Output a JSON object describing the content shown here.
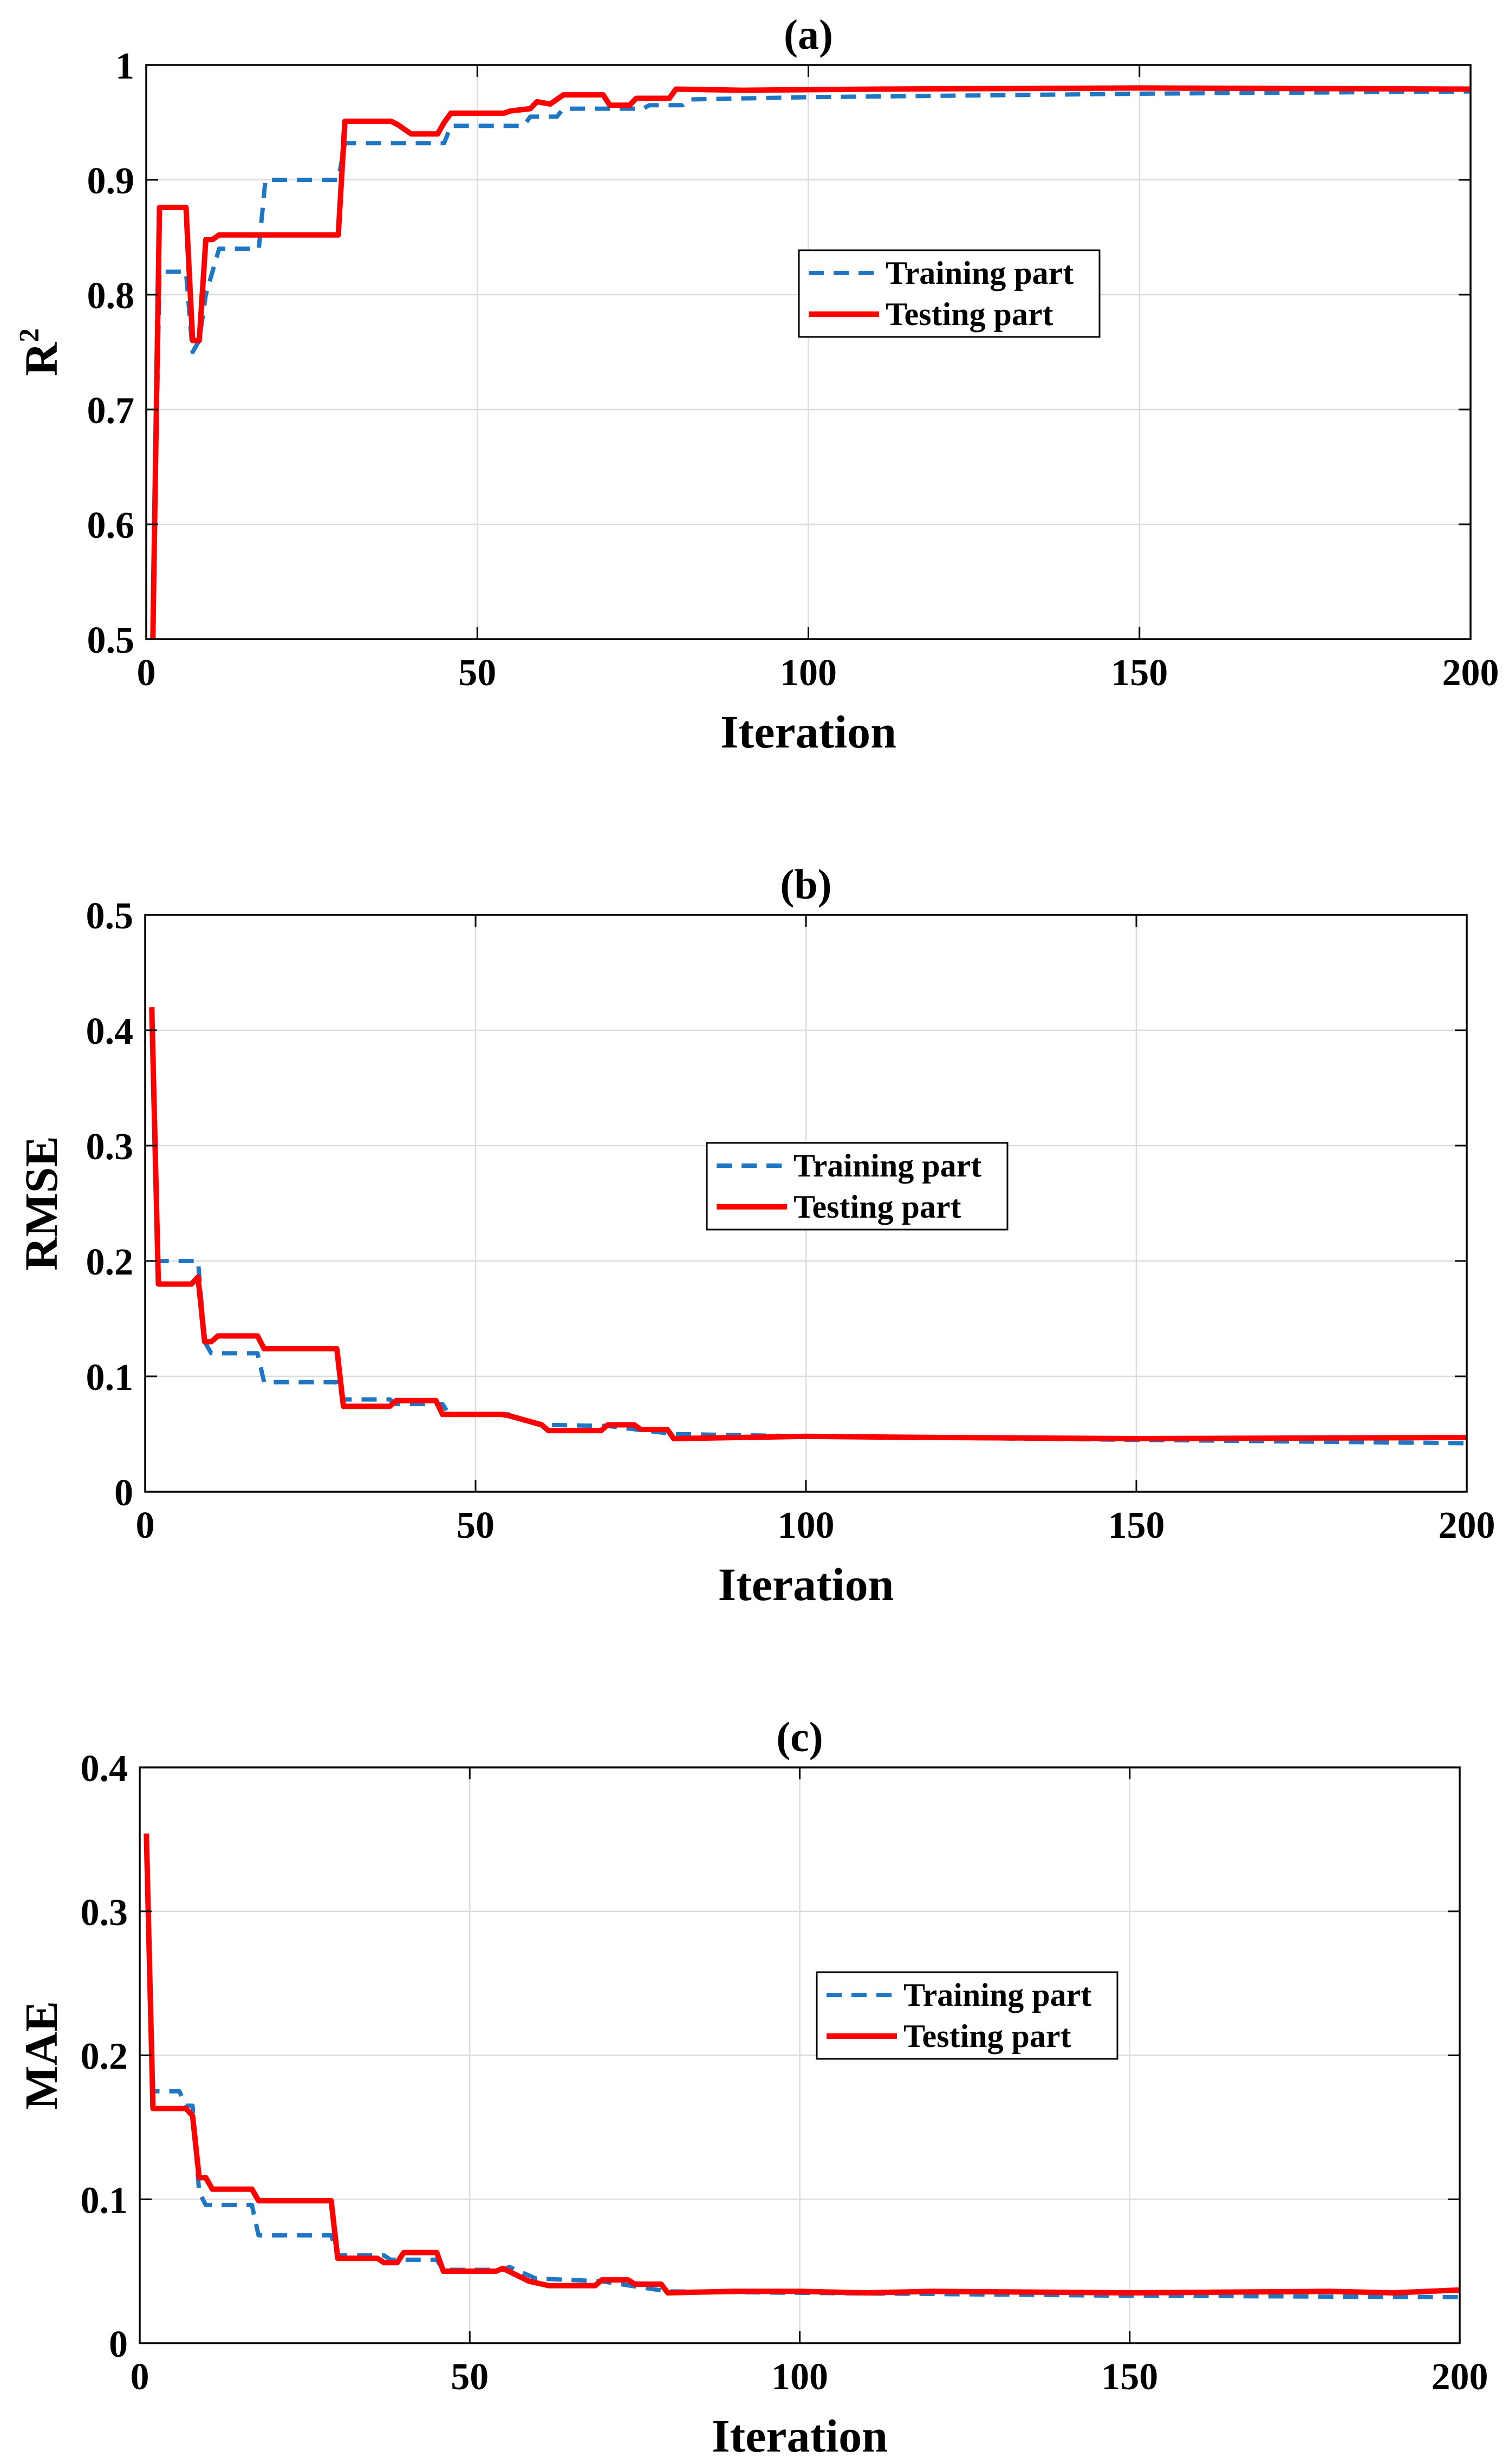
{
  "chart_data": [
    {
      "panel": "a",
      "type": "line",
      "title": "(a)",
      "xlabel": "Iteration",
      "ylabel": "R",
      "ylabel_sup": "2",
      "xlim": [
        0,
        200
      ],
      "ylim": [
        0.5,
        1
      ],
      "xticks": [
        0,
        50,
        100,
        150,
        200
      ],
      "xtick_labels": [
        "0",
        "50",
        "100",
        "150",
        "200"
      ],
      "yticks": [
        0.5,
        0.6,
        0.7,
        0.8,
        0.9,
        1
      ],
      "ytick_labels": [
        "0.5",
        "0.6",
        "0.7",
        "0.8",
        "0.9",
        "1"
      ],
      "grid": true,
      "legend_position": "center-right",
      "series": [
        {
          "name": "Training part",
          "color": "#1f77c4",
          "style": "dashed",
          "points": [
            [
              1,
              0.5
            ],
            [
              2,
              0.82
            ],
            [
              6,
              0.82
            ],
            [
              7,
              0.75
            ],
            [
              8,
              0.76
            ],
            [
              9,
              0.8
            ],
            [
              11,
              0.84
            ],
            [
              17,
              0.84
            ],
            [
              18,
              0.9
            ],
            [
              29,
              0.9
            ],
            [
              30,
              0.932
            ],
            [
              45,
              0.932
            ],
            [
              46,
              0.947
            ],
            [
              57,
              0.947
            ],
            [
              58,
              0.955
            ],
            [
              62,
              0.955
            ],
            [
              63,
              0.962
            ],
            [
              75,
              0.962
            ],
            [
              76,
              0.965
            ],
            [
              81,
              0.965
            ],
            [
              82,
              0.97
            ],
            [
              100,
              0.972
            ],
            [
              150,
              0.975
            ],
            [
              200,
              0.977
            ]
          ]
        },
        {
          "name": "Testing part",
          "color": "#ff0000",
          "style": "solid",
          "points": [
            [
              1,
              0.5
            ],
            [
              2,
              0.876
            ],
            [
              6,
              0.876
            ],
            [
              7,
              0.76
            ],
            [
              8,
              0.76
            ],
            [
              9,
              0.848
            ],
            [
              10,
              0.848
            ],
            [
              11,
              0.852
            ],
            [
              29,
              0.852
            ],
            [
              30,
              0.951
            ],
            [
              37,
              0.951
            ],
            [
              38,
              0.948
            ],
            [
              40,
              0.94
            ],
            [
              44,
              0.94
            ],
            [
              45,
              0.95
            ],
            [
              46,
              0.958
            ],
            [
              54,
              0.958
            ],
            [
              55,
              0.96
            ],
            [
              58,
              0.962
            ],
            [
              59,
              0.968
            ],
            [
              61,
              0.966
            ],
            [
              62,
              0.97
            ],
            [
              63,
              0.974
            ],
            [
              69,
              0.974
            ],
            [
              70,
              0.965
            ],
            [
              73,
              0.965
            ],
            [
              74,
              0.971
            ],
            [
              79,
              0.971
            ],
            [
              80,
              0.979
            ],
            [
              90,
              0.978
            ],
            [
              110,
              0.979
            ],
            [
              150,
              0.98
            ],
            [
              200,
              0.979
            ]
          ]
        }
      ]
    },
    {
      "panel": "b",
      "type": "line",
      "title": "(b)",
      "xlabel": "Iteration",
      "ylabel": "RMSE",
      "ylabel_sup": "",
      "xlim": [
        0,
        200
      ],
      "ylim": [
        0,
        0.5
      ],
      "xticks": [
        0,
        50,
        100,
        150,
        200
      ],
      "xtick_labels": [
        "0",
        "50",
        "100",
        "150",
        "200"
      ],
      "yticks": [
        0,
        0.1,
        0.2,
        0.3,
        0.4,
        0.5
      ],
      "ytick_labels": [
        "0",
        "0.1",
        "0.2",
        "0.3",
        "0.4",
        "0.5"
      ],
      "grid": true,
      "legend_position": "center",
      "series": [
        {
          "name": "Training part",
          "color": "#1f77c4",
          "style": "dashed",
          "points": [
            [
              1,
              0.42
            ],
            [
              2,
              0.2
            ],
            [
              8,
              0.2
            ],
            [
              9,
              0.13
            ],
            [
              10,
              0.12
            ],
            [
              17,
              0.12
            ],
            [
              18,
              0.095
            ],
            [
              29,
              0.095
            ],
            [
              30,
              0.08
            ],
            [
              37,
              0.08
            ],
            [
              38,
              0.076
            ],
            [
              45,
              0.076
            ],
            [
              46,
              0.067
            ],
            [
              55,
              0.067
            ],
            [
              56,
              0.064
            ],
            [
              60,
              0.058
            ],
            [
              70,
              0.057
            ],
            [
              80,
              0.05
            ],
            [
              90,
              0.049
            ],
            [
              100,
              0.048
            ],
            [
              150,
              0.045
            ],
            [
              200,
              0.042
            ]
          ]
        },
        {
          "name": "Testing part",
          "color": "#ff0000",
          "style": "solid",
          "points": [
            [
              1,
              0.42
            ],
            [
              2,
              0.18
            ],
            [
              7,
              0.18
            ],
            [
              8,
              0.186
            ],
            [
              9,
              0.13
            ],
            [
              10,
              0.13
            ],
            [
              11,
              0.135
            ],
            [
              17,
              0.135
            ],
            [
              18,
              0.124
            ],
            [
              29,
              0.124
            ],
            [
              30,
              0.074
            ],
            [
              37,
              0.074
            ],
            [
              38,
              0.079
            ],
            [
              44,
              0.079
            ],
            [
              45,
              0.067
            ],
            [
              54,
              0.067
            ],
            [
              55,
              0.066
            ],
            [
              60,
              0.058
            ],
            [
              61,
              0.053
            ],
            [
              69,
              0.053
            ],
            [
              70,
              0.058
            ],
            [
              74,
              0.058
            ],
            [
              75,
              0.054
            ],
            [
              79,
              0.054
            ],
            [
              80,
              0.046
            ],
            [
              90,
              0.047
            ],
            [
              100,
              0.048
            ],
            [
              120,
              0.047
            ],
            [
              150,
              0.046
            ],
            [
              200,
              0.047
            ]
          ]
        }
      ]
    },
    {
      "panel": "c",
      "type": "line",
      "title": "(c)",
      "xlabel": "Iteration",
      "ylabel": "MAE",
      "ylabel_sup": "",
      "xlim": [
        0,
        200
      ],
      "ylim": [
        0,
        0.4
      ],
      "xticks": [
        0,
        50,
        100,
        150,
        200
      ],
      "xtick_labels": [
        "0",
        "50",
        "100",
        "150",
        "200"
      ],
      "yticks": [
        0,
        0.1,
        0.2,
        0.3,
        0.4
      ],
      "ytick_labels": [
        "0",
        "0.1",
        "0.2",
        "0.3",
        "0.4"
      ],
      "grid": true,
      "legend_position": "center-right",
      "series": [
        {
          "name": "Training part",
          "color": "#1f77c4",
          "style": "dashed",
          "points": [
            [
              1,
              0.354
            ],
            [
              2,
              0.175
            ],
            [
              6,
              0.175
            ],
            [
              7,
              0.165
            ],
            [
              8,
              0.165
            ],
            [
              9,
              0.105
            ],
            [
              10,
              0.096
            ],
            [
              17,
              0.096
            ],
            [
              18,
              0.075
            ],
            [
              29,
              0.075
            ],
            [
              30,
              0.061
            ],
            [
              37,
              0.061
            ],
            [
              38,
              0.058
            ],
            [
              45,
              0.058
            ],
            [
              46,
              0.051
            ],
            [
              55,
              0.051
            ],
            [
              56,
              0.053
            ],
            [
              60,
              0.045
            ],
            [
              70,
              0.043
            ],
            [
              80,
              0.036
            ],
            [
              100,
              0.035
            ],
            [
              150,
              0.033
            ],
            [
              200,
              0.032
            ]
          ]
        },
        {
          "name": "Testing part",
          "color": "#ff0000",
          "style": "solid",
          "points": [
            [
              1,
              0.354
            ],
            [
              2,
              0.163
            ],
            [
              7,
              0.163
            ],
            [
              8,
              0.158
            ],
            [
              9,
              0.115
            ],
            [
              10,
              0.115
            ],
            [
              11,
              0.107
            ],
            [
              17,
              0.107
            ],
            [
              18,
              0.099
            ],
            [
              29,
              0.099
            ],
            [
              30,
              0.059
            ],
            [
              36,
              0.059
            ],
            [
              37,
              0.056
            ],
            [
              39,
              0.056
            ],
            [
              40,
              0.063
            ],
            [
              45,
              0.063
            ],
            [
              46,
              0.05
            ],
            [
              54,
              0.05
            ],
            [
              55,
              0.052
            ],
            [
              59,
              0.043
            ],
            [
              62,
              0.04
            ],
            [
              69,
              0.04
            ],
            [
              70,
              0.044
            ],
            [
              74,
              0.044
            ],
            [
              75,
              0.041
            ],
            [
              79,
              0.041
            ],
            [
              80,
              0.035
            ],
            [
              90,
              0.036
            ],
            [
              100,
              0.036
            ],
            [
              110,
              0.035
            ],
            [
              120,
              0.036
            ],
            [
              150,
              0.035
            ],
            [
              180,
              0.036
            ],
            [
              190,
              0.035
            ],
            [
              200,
              0.037
            ]
          ]
        }
      ]
    }
  ]
}
